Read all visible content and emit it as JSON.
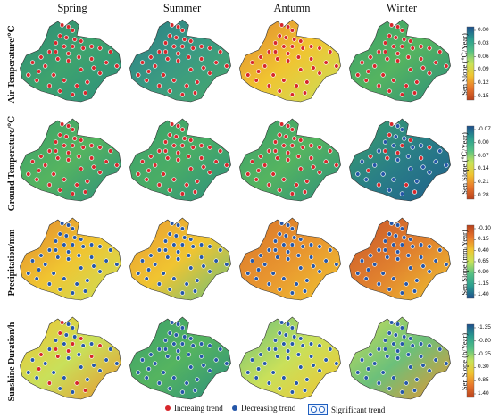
{
  "columns": [
    "Spring",
    "Summer",
    "Antumn",
    "Winter"
  ],
  "rows": [
    {
      "label": "Air Temperature/℃",
      "cbar_title": "Sen Slope (℃/Year)",
      "ticks": [
        "0.00",
        "0.03",
        "0.06",
        "0.09",
        "0.12",
        "0.15"
      ],
      "cbar_colors": [
        "#1f4e8c",
        "#2a9d8f",
        "#55c085",
        "#c7e35a",
        "#f0c431",
        "#e8772c",
        "#b8411d"
      ],
      "maps": [
        {
          "palette": [
            "#2e8b78",
            "#3ea36e",
            "#2c8f7e"
          ],
          "markers": "red"
        },
        {
          "palette": [
            "#2a7f86",
            "#3b9a82",
            "#46a96c"
          ],
          "markers": "red"
        },
        {
          "palette": [
            "#e0872f",
            "#f0c431",
            "#c9e05a"
          ],
          "markers": "red"
        },
        {
          "palette": [
            "#3aa06c",
            "#55b460",
            "#2c8f7e"
          ],
          "markers": "red"
        }
      ]
    },
    {
      "label": "Ground Temperature/℃",
      "cbar_title": "Sen Slope (℃/Year)",
      "ticks": [
        "-0.07",
        "0.00",
        "0.07",
        "0.14",
        "0.21",
        "0.28"
      ],
      "cbar_colors": [
        "#1f4e8c",
        "#2a9d8f",
        "#55c085",
        "#c7e35a",
        "#f0c431",
        "#e8772c",
        "#b8411d"
      ],
      "maps": [
        {
          "palette": [
            "#3aa06c",
            "#55b460",
            "#2c8f7e"
          ],
          "markers": "red"
        },
        {
          "palette": [
            "#3aa06c",
            "#4aad66",
            "#2c8f7e"
          ],
          "markers": "red"
        },
        {
          "palette": [
            "#3aa06c",
            "#55b460",
            "#2c8f7e"
          ],
          "markers": "red"
        },
        {
          "palette": [
            "#3aa06c",
            "#2a7f86",
            "#1f5f8c"
          ],
          "markers": "mixed"
        }
      ]
    },
    {
      "label": "Precipitation/mm",
      "cbar_title": "Sen Slope (mm/Year)",
      "ticks": [
        "-0.10",
        "0.15",
        "0.40",
        "0.65",
        "0.90",
        "1.15",
        "1.40"
      ],
      "cbar_colors": [
        "#b8411d",
        "#e8772c",
        "#f0c431",
        "#c7e35a",
        "#55c085",
        "#2a9d8f",
        "#1f4e8c"
      ],
      "maps": [
        {
          "palette": [
            "#e0872f",
            "#f0c431",
            "#c9e05a"
          ],
          "markers": "blue"
        },
        {
          "palette": [
            "#e89a32",
            "#f0c431",
            "#6cc07a"
          ],
          "markers": "blue"
        },
        {
          "palette": [
            "#d9742a",
            "#e8952f",
            "#f0c431"
          ],
          "markers": "blue"
        },
        {
          "palette": [
            "#c9552a",
            "#e0802e",
            "#f0c431"
          ],
          "markers": "blue"
        }
      ]
    },
    {
      "label": "Sunshine Duration/h",
      "cbar_title": "Sen Slope (h/Year)",
      "ticks": [
        "-1.35",
        "-0.80",
        "-0.25",
        "0.30",
        "0.85",
        "1.40"
      ],
      "cbar_colors": [
        "#1f4e8c",
        "#2a9d8f",
        "#55c085",
        "#c7e35a",
        "#f0c431",
        "#e8772c",
        "#b8411d"
      ],
      "maps": [
        {
          "palette": [
            "#f0c431",
            "#c9e05a",
            "#e8952f"
          ],
          "markers": "mixed"
        },
        {
          "palette": [
            "#3aa06c",
            "#55b460",
            "#2c8f7e"
          ],
          "markers": "blue"
        },
        {
          "palette": [
            "#6cc07a",
            "#c9e05a",
            "#f0c431"
          ],
          "markers": "blue"
        },
        {
          "palette": [
            "#c9e05a",
            "#6cc07a",
            "#e8952f"
          ],
          "markers": "blue"
        }
      ]
    }
  ],
  "legend": {
    "increasing": "Increaing trend",
    "decreasing": "Decreasing trend",
    "significant": "Significant trend"
  },
  "colors": {
    "red_marker": "#d7262b",
    "blue_marker": "#2456a8",
    "outline": "#333333"
  }
}
